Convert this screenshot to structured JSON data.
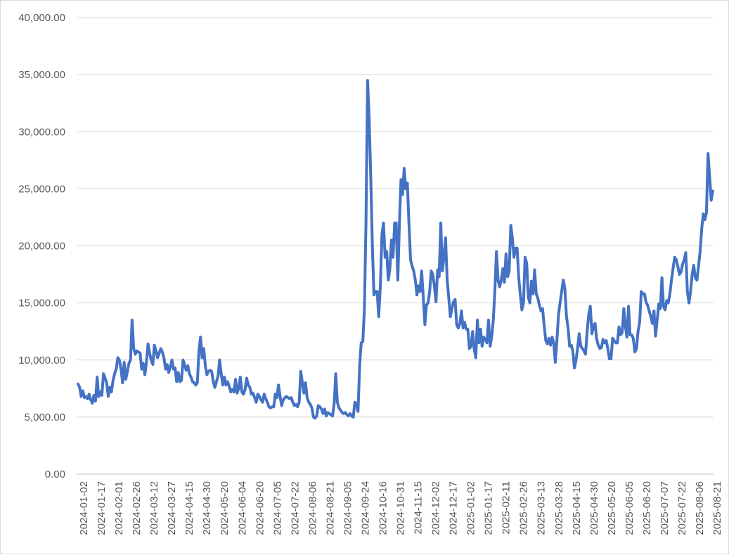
{
  "chart_data": {
    "type": "line",
    "title": "",
    "xlabel": "",
    "ylabel": "",
    "ylim": [
      0,
      40000
    ],
    "y_ticks": [
      "0.00",
      "5,000.00",
      "10,000.00",
      "15,000.00",
      "20,000.00",
      "25,000.00",
      "30,000.00",
      "35,000.00",
      "40,000.00"
    ],
    "x_tick_labels": [
      "2024-01-02",
      "2024-01-17",
      "2024-02-01",
      "2024-02-26",
      "2024-03-12",
      "2024-03-27",
      "2024-04-15",
      "2024-04-30",
      "2024-05-20",
      "2024-06-04",
      "2024-06-20",
      "2024-07-05",
      "2024-07-22",
      "2024-08-06",
      "2024-08-21",
      "2024-09-05",
      "2024-09-24",
      "2024-10-16",
      "2024-10-31",
      "2024-11-15",
      "2024-12-02",
      "2024-12-17",
      "2025-01-02",
      "2025-01-17",
      "2025-02-11",
      "2025-02-26",
      "2025-03-13",
      "2025-03-28",
      "2025-04-15",
      "2025-04-30",
      "2025-05-20",
      "2025-06-05",
      "2025-06-20",
      "2025-07-07",
      "2025-07-22",
      "2025-08-06",
      "2025-08-21"
    ],
    "grid": true,
    "legend": "none",
    "color": "#4472c4",
    "series": [
      {
        "values": [
          7900,
          7600,
          6800,
          7300,
          6700,
          6800,
          6600,
          7000,
          6500,
          6200,
          6900,
          6400,
          8500,
          6800,
          7200,
          6900,
          8800,
          8400,
          8000,
          6800,
          7600,
          7200,
          8200,
          8800,
          9200,
          10200,
          10000,
          9200,
          8000,
          9800,
          8300,
          9000,
          9700,
          10000,
          13500,
          11000,
          10500,
          10800,
          10700,
          10600,
          9200,
          9700,
          8700,
          9800,
          11400,
          10600,
          10000,
          9600,
          11300,
          10800,
          10200,
          10600,
          11000,
          10700,
          10200,
          9200,
          9600,
          8900,
          9400,
          10000,
          9200,
          9300,
          8100,
          8900,
          8100,
          8200,
          10000,
          9600,
          9100,
          9500,
          8800,
          8500,
          8100,
          8000,
          7800,
          8000,
          10800,
          12000,
          10200,
          11000,
          9500,
          8700,
          9000,
          9100,
          9000,
          8100,
          7600,
          8100,
          8600,
          10000,
          8800,
          7800,
          8500,
          7800,
          8100,
          7700,
          7200,
          7400,
          7200,
          8300,
          7100,
          7500,
          8500,
          7200,
          7000,
          7400,
          8400,
          7800,
          7600,
          7000,
          7100,
          6700,
          6300,
          7000,
          6800,
          6500,
          6300,
          7000,
          6600,
          6300,
          5900,
          5800,
          5900,
          5900,
          7000,
          6700,
          7800,
          6800,
          6000,
          6500,
          6700,
          6800,
          6700,
          6600,
          6700,
          6300,
          6000,
          6100,
          5900,
          6300,
          9000,
          8000,
          7100,
          8000,
          6700,
          6300,
          6100,
          5800,
          5000,
          4900,
          5100,
          6000,
          5900,
          5700,
          5300,
          5700,
          5100,
          5400,
          5300,
          5200,
          5100,
          6200,
          8800,
          6300,
          5800,
          5600,
          5400,
          5300,
          5400,
          5200,
          5100,
          5300,
          5100,
          5000,
          6300,
          6100,
          5500,
          9500,
          11500,
          11600,
          14500,
          22000,
          34500,
          31000,
          26000,
          20000,
          15700,
          16000,
          16000,
          13800,
          16400,
          21000,
          22000,
          19000,
          19500,
          17000,
          18000,
          20500,
          19000,
          22000,
          22000,
          17000,
          22000,
          25800,
          24500,
          26800,
          25000,
          25500,
          22000,
          18800,
          18200,
          17800,
          17000,
          15700,
          16500,
          16000,
          17800,
          15500,
          13100,
          14800,
          15000,
          16000,
          17800,
          17500,
          16500,
          15100,
          17900,
          17300,
          22000,
          17800,
          19000,
          20700,
          17000,
          15500,
          13800,
          14500,
          15100,
          15300,
          13100,
          12800,
          13200,
          14300,
          12800,
          13300,
          12700,
          12700,
          11000,
          11200,
          12500,
          11000,
          10200,
          13500,
          11500,
          12700,
          11200,
          12000,
          11800,
          11500,
          13500,
          11200,
          12000,
          13500,
          16000,
          19500,
          17000,
          16400,
          17000,
          18000,
          16800,
          19300,
          17300,
          17800,
          21800,
          20700,
          19000,
          19800,
          19800,
          17200,
          15700,
          14400,
          15000,
          19000,
          18500,
          15500,
          15000,
          16900,
          15800,
          17900,
          15800,
          15400,
          14800,
          14300,
          14500,
          13000,
          11700,
          11400,
          11900,
          11300,
          12000,
          11500,
          9800,
          11700,
          14000,
          15000,
          16000,
          17000,
          16300,
          13800,
          12800,
          11200,
          11300,
          10800,
          9300,
          10000,
          11000,
          12300,
          11200,
          11000,
          10800,
          10500,
          12500,
          14000,
          14700,
          12300,
          13000,
          13200,
          11800,
          11300,
          11000,
          11100,
          11800,
          11500,
          11700,
          11000,
          10100,
          10100,
          11900,
          11700,
          11500,
          11500,
          12900,
          12200,
          12400,
          14500,
          13000,
          12000,
          14700,
          12200,
          12200,
          11900,
          10700,
          11000,
          12500,
          13300,
          16000,
          15800,
          15800,
          15100,
          14800,
          14300,
          13800,
          13200,
          14300,
          12100,
          13500,
          14900,
          14500,
          17200,
          14700,
          14400,
          15200,
          15000,
          15800,
          17000,
          18000,
          19000,
          18800,
          18200,
          17500,
          17700,
          18400,
          18800,
          19400,
          16000,
          15000,
          16000,
          17500,
          18300,
          17200,
          17000,
          18200,
          19500,
          21500,
          22800,
          22300,
          22900,
          28100,
          26000,
          24000,
          24800
        ]
      }
    ]
  }
}
